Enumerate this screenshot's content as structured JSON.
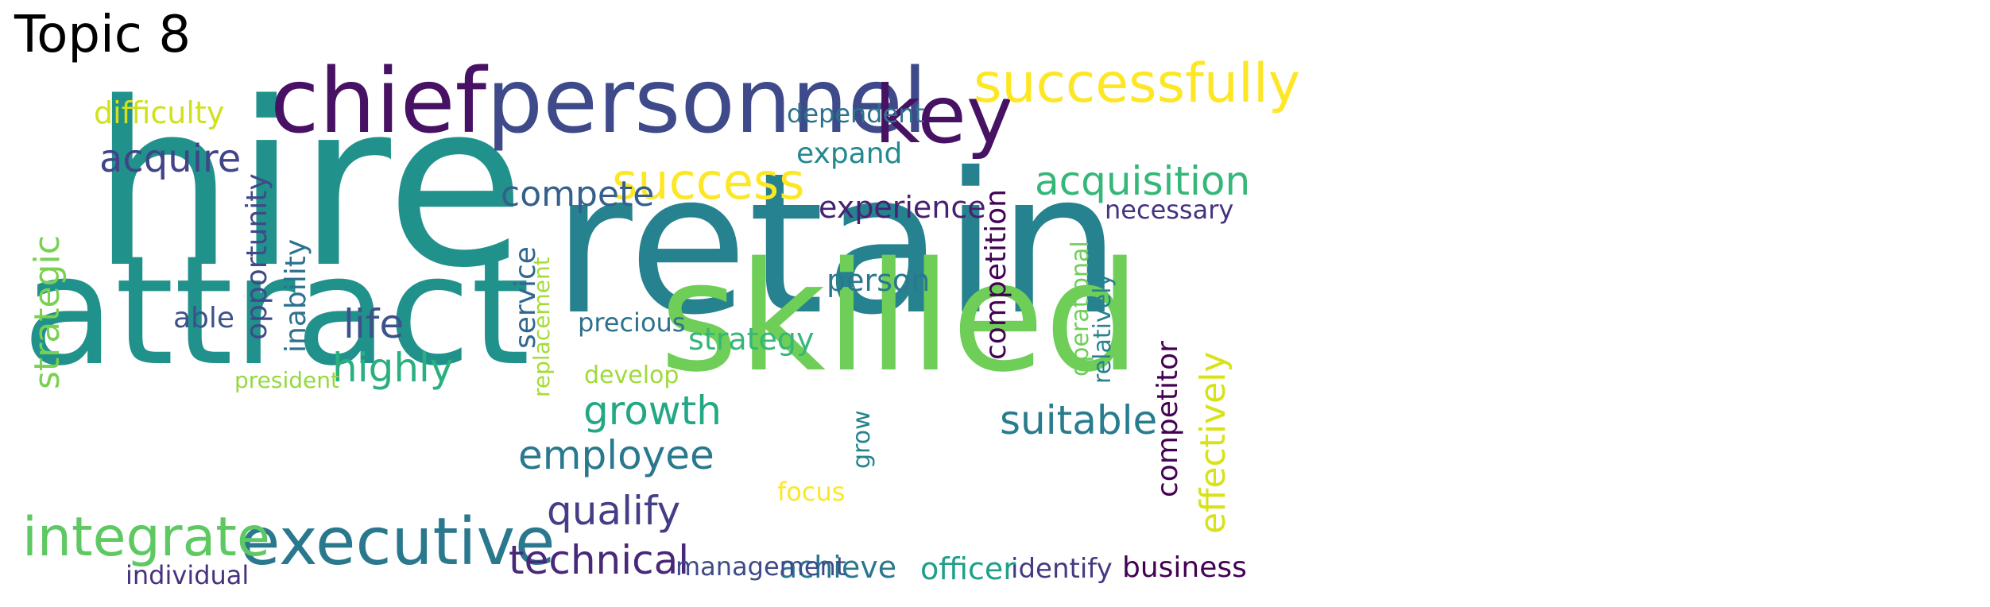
{
  "title": "Topic 8",
  "palette": {
    "purple_dark": "#471164",
    "purple": "#482878",
    "indigo": "#3e4a89",
    "blue": "#31688e",
    "teal": "#26828e",
    "teal_green": "#1f9e89",
    "green": "#35b779",
    "light_green": "#6ece58",
    "lime": "#b5de2b",
    "yellow": "#fde725"
  },
  "words": [
    {
      "text": "hire",
      "color": "#21918c"
    },
    {
      "text": "retain",
      "color": "#26828e"
    },
    {
      "text": "attract",
      "color": "#21918c"
    },
    {
      "text": "skilled",
      "color": "#6ece58"
    },
    {
      "text": "personnel",
      "color": "#3e4a89"
    },
    {
      "text": "chief",
      "color": "#471164"
    },
    {
      "text": "key",
      "color": "#471164"
    },
    {
      "text": "successfully",
      "color": "#fde725"
    },
    {
      "text": "success",
      "color": "#fde725"
    },
    {
      "text": "executive",
      "color": "#2a788e"
    },
    {
      "text": "integrate",
      "color": "#5ec962"
    },
    {
      "text": "acquisition",
      "color": "#35b779"
    },
    {
      "text": "acquire",
      "color": "#414487"
    },
    {
      "text": "compete",
      "color": "#355f8d"
    },
    {
      "text": "strategic",
      "color": "#7ad151"
    },
    {
      "text": "employee",
      "color": "#2a788e"
    },
    {
      "text": "qualify",
      "color": "#433e85"
    },
    {
      "text": "technical",
      "color": "#482878"
    },
    {
      "text": "growth",
      "color": "#22a884"
    },
    {
      "text": "suitable",
      "color": "#287c8e"
    },
    {
      "text": "effectively",
      "color": "#d8e219"
    },
    {
      "text": "highly",
      "color": "#2ab07f"
    },
    {
      "text": "life",
      "color": "#3b528b"
    },
    {
      "text": "difficulty",
      "color": "#d0e11c"
    },
    {
      "text": "experience",
      "color": "#482173"
    },
    {
      "text": "competition",
      "color": "#440154"
    },
    {
      "text": "competitor",
      "color": "#440154"
    },
    {
      "text": "opportunity",
      "color": "#3e4a89"
    },
    {
      "text": "inability",
      "color": "#2c728e"
    },
    {
      "text": "service",
      "color": "#31688e"
    },
    {
      "text": "replacement",
      "color": "#a5db36"
    },
    {
      "text": "strategy",
      "color": "#35b779"
    },
    {
      "text": "person",
      "color": "#2a788e"
    },
    {
      "text": "expand",
      "color": "#23898e"
    },
    {
      "text": "dependent",
      "color": "#2c728e"
    },
    {
      "text": "necessary",
      "color": "#46327e"
    },
    {
      "text": "operational",
      "color": "#6ece58"
    },
    {
      "text": "relatively",
      "color": "#26828e"
    },
    {
      "text": "business",
      "color": "#440154"
    },
    {
      "text": "identify",
      "color": "#443983"
    },
    {
      "text": "officer",
      "color": "#1f9e89"
    },
    {
      "text": "achieve",
      "color": "#2a788e"
    },
    {
      "text": "management",
      "color": "#3e4a89"
    },
    {
      "text": "focus",
      "color": "#fde725"
    },
    {
      "text": "grow",
      "color": "#25848e"
    },
    {
      "text": "develop",
      "color": "#a0da39"
    },
    {
      "text": "precious",
      "color": "#2c728e"
    },
    {
      "text": "able",
      "color": "#3b528b"
    },
    {
      "text": "president",
      "color": "#95d840"
    },
    {
      "text": "individual",
      "color": "#46327e"
    }
  ]
}
